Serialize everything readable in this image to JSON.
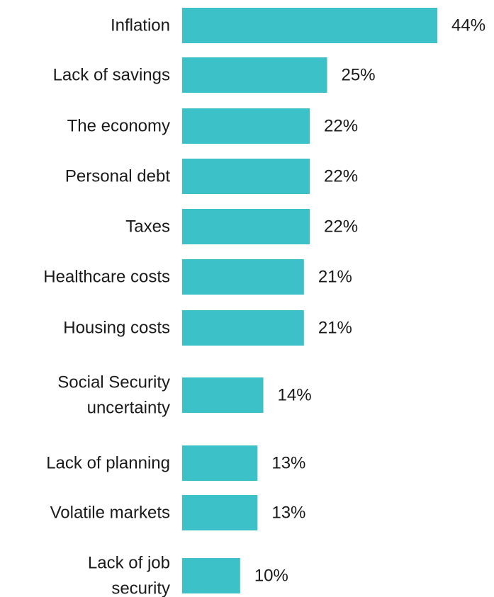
{
  "chart_data": {
    "type": "bar",
    "orientation": "horizontal",
    "title": "",
    "xlabel": "",
    "ylabel": "",
    "xlim": [
      0,
      44
    ],
    "grid": false,
    "legend": "none",
    "value_suffix": "%",
    "categories": [
      [
        "Inflation"
      ],
      [
        "Lack of savings"
      ],
      [
        "The economy"
      ],
      [
        "Personal debt"
      ],
      [
        "Taxes"
      ],
      [
        "Healthcare costs"
      ],
      [
        "Housing costs"
      ],
      [
        "Social Security",
        "uncertainty"
      ],
      [
        "Lack of planning"
      ],
      [
        "Volatile markets"
      ],
      [
        "Lack of job",
        "security"
      ]
    ],
    "values": [
      44,
      25,
      22,
      22,
      22,
      21,
      21,
      14,
      13,
      13,
      10
    ],
    "data_labels": [
      "44%",
      "25%",
      "22%",
      "22%",
      "22%",
      "21%",
      "21%",
      "14%",
      "13%",
      "13%",
      "10%"
    ],
    "colors": {
      "bar": "#3cc1c9",
      "text": "#1a1a1a"
    }
  }
}
